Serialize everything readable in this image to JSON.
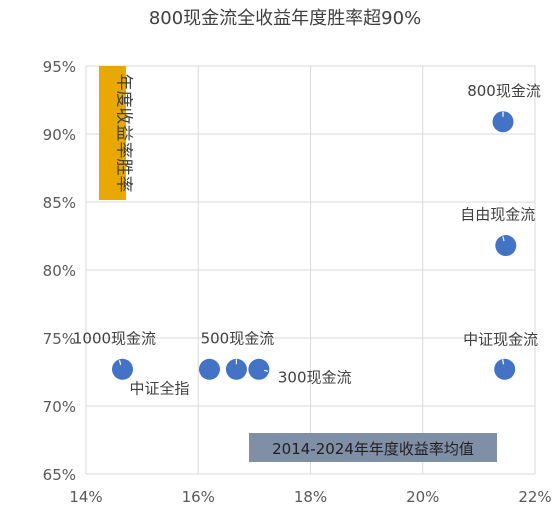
{
  "chart_data": {
    "type": "scatter",
    "title": "800现金流全收益年度胜率超90%",
    "ylabel": "年度收益率胜率",
    "xlabel": "2014-2024年年度收益率均值",
    "xlim": [
      0.14,
      0.22
    ],
    "ylim": [
      0.65,
      0.95
    ],
    "x_ticks": [
      "14%",
      "16%",
      "18%",
      "20%",
      "22%"
    ],
    "y_ticks": [
      "65%",
      "70%",
      "75%",
      "80%",
      "85%",
      "90%",
      "95%"
    ],
    "grid": true,
    "points": [
      {
        "label": "1000现金流",
        "x": 0.1465,
        "y": 0.727
      },
      {
        "label": "中证全指",
        "x": 0.162,
        "y": 0.727
      },
      {
        "label": "500现金流",
        "x": 0.1668,
        "y": 0.727
      },
      {
        "label": "300现金流",
        "x": 0.1708,
        "y": 0.727
      },
      {
        "label": "800现金流",
        "x": 0.2143,
        "y": 0.909
      },
      {
        "label": "自由现金流",
        "x": 0.2148,
        "y": 0.818
      },
      {
        "label": "中证现金流",
        "x": 0.2146,
        "y": 0.727
      }
    ],
    "colors": {
      "point": "#4472C4",
      "ylabel_bg": "#E8A800",
      "xlabel_bg": "#7F8FA6",
      "grid": "#D9D9D9",
      "text": "#595959"
    }
  }
}
